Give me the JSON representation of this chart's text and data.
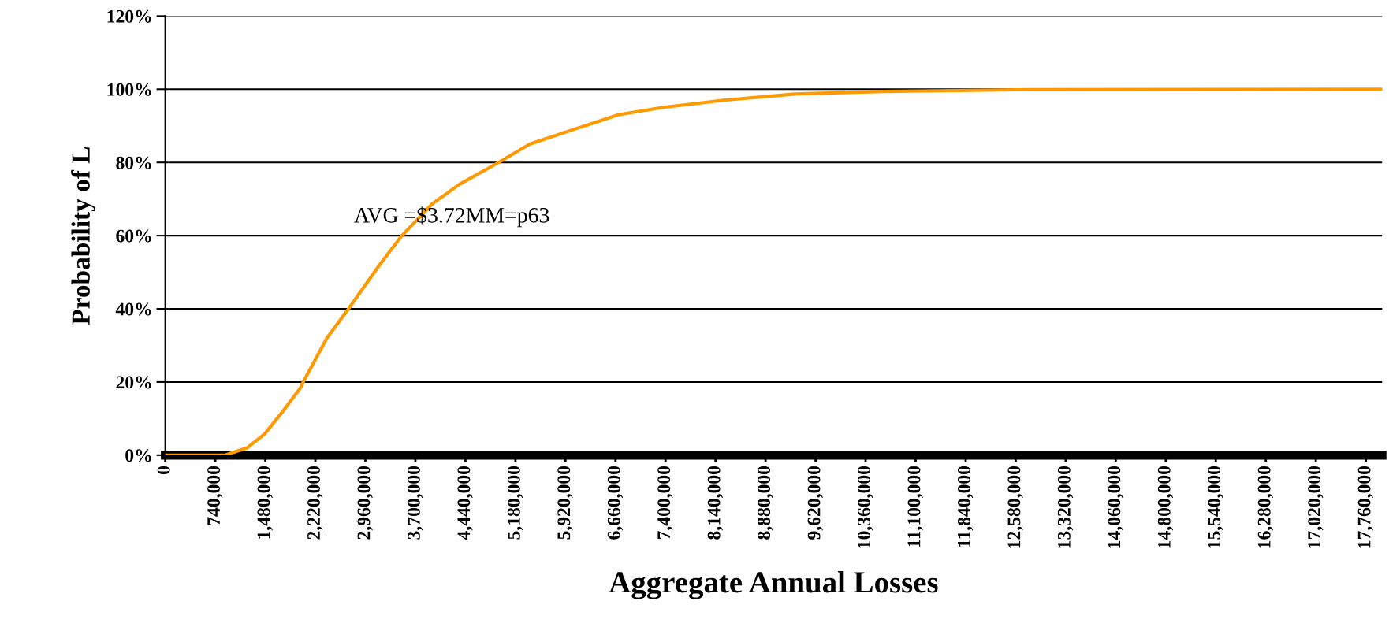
{
  "chart_data": {
    "type": "line",
    "xlabel": "Aggregate Annual Losses",
    "ylabel": "Probability of L",
    "x": [
      0,
      887000,
      1210000,
      1470000,
      1740000,
      2000000,
      2040000,
      2390000,
      2710000,
      3170000,
      3500000,
      3950000,
      4350000,
      4930000,
      5390000,
      6040000,
      6700000,
      7350000,
      8260000,
      9310000,
      10600000,
      12830000,
      18000000
    ],
    "series": [
      {
        "color": "#ff9900",
        "values": [
          0,
          0,
          2,
          5.8,
          12,
          18.4,
          20,
          32,
          40,
          52,
          60,
          68.7,
          74,
          80,
          85,
          89,
          93,
          95,
          97,
          98.7,
          99.4,
          99.9,
          100
        ]
      }
    ],
    "annotations": [
      "AVG =$3.72MM=p63"
    ],
    "xlim": [
      0,
      18000000
    ],
    "xticks": [
      {
        "value": 0,
        "label": "0"
      },
      {
        "value": 740000,
        "label": "740,000"
      },
      {
        "value": 1480000,
        "label": "1,480,000"
      },
      {
        "value": 2220000,
        "label": "2,220,000"
      },
      {
        "value": 2960000,
        "label": "2,960,000"
      },
      {
        "value": 3700000,
        "label": "3,700,000"
      },
      {
        "value": 4440000,
        "label": "4,440,000"
      },
      {
        "value": 5180000,
        "label": "5,180,000"
      },
      {
        "value": 5920000,
        "label": "5,920,000"
      },
      {
        "value": 6660000,
        "label": "6,660,000"
      },
      {
        "value": 7400000,
        "label": "7,400,000"
      },
      {
        "value": 8140000,
        "label": "8,140,000"
      },
      {
        "value": 8880000,
        "label": "8,880,000"
      },
      {
        "value": 9620000,
        "label": "9,620,000"
      },
      {
        "value": 10360000,
        "label": "10,360,000"
      },
      {
        "value": 11100000,
        "label": "11,100,000"
      },
      {
        "value": 11840000,
        "label": "11,840,000"
      },
      {
        "value": 12580000,
        "label": "12,580,000"
      },
      {
        "value": 13320000,
        "label": "13,320,000"
      },
      {
        "value": 14060000,
        "label": "14,060,000"
      },
      {
        "value": 14800000,
        "label": "14,800,000"
      },
      {
        "value": 15540000,
        "label": "15,540,000"
      },
      {
        "value": 16280000,
        "label": "16,280,000"
      },
      {
        "value": 17020000,
        "label": "17,020,000"
      },
      {
        "value": 17760000,
        "label": "17,760,000"
      }
    ],
    "ylim": [
      0,
      120
    ],
    "yticks": [
      {
        "value": 0,
        "label": "0%"
      },
      {
        "value": 20,
        "label": "20%"
      },
      {
        "value": 40,
        "label": "40%"
      },
      {
        "value": 60,
        "label": "60%"
      },
      {
        "value": 80,
        "label": "80%"
      },
      {
        "value": 100,
        "label": "100%"
      },
      {
        "value": 120,
        "label": "120%"
      }
    ],
    "grid": "y",
    "legend": false,
    "marker": "none",
    "line_style": "solid"
  }
}
